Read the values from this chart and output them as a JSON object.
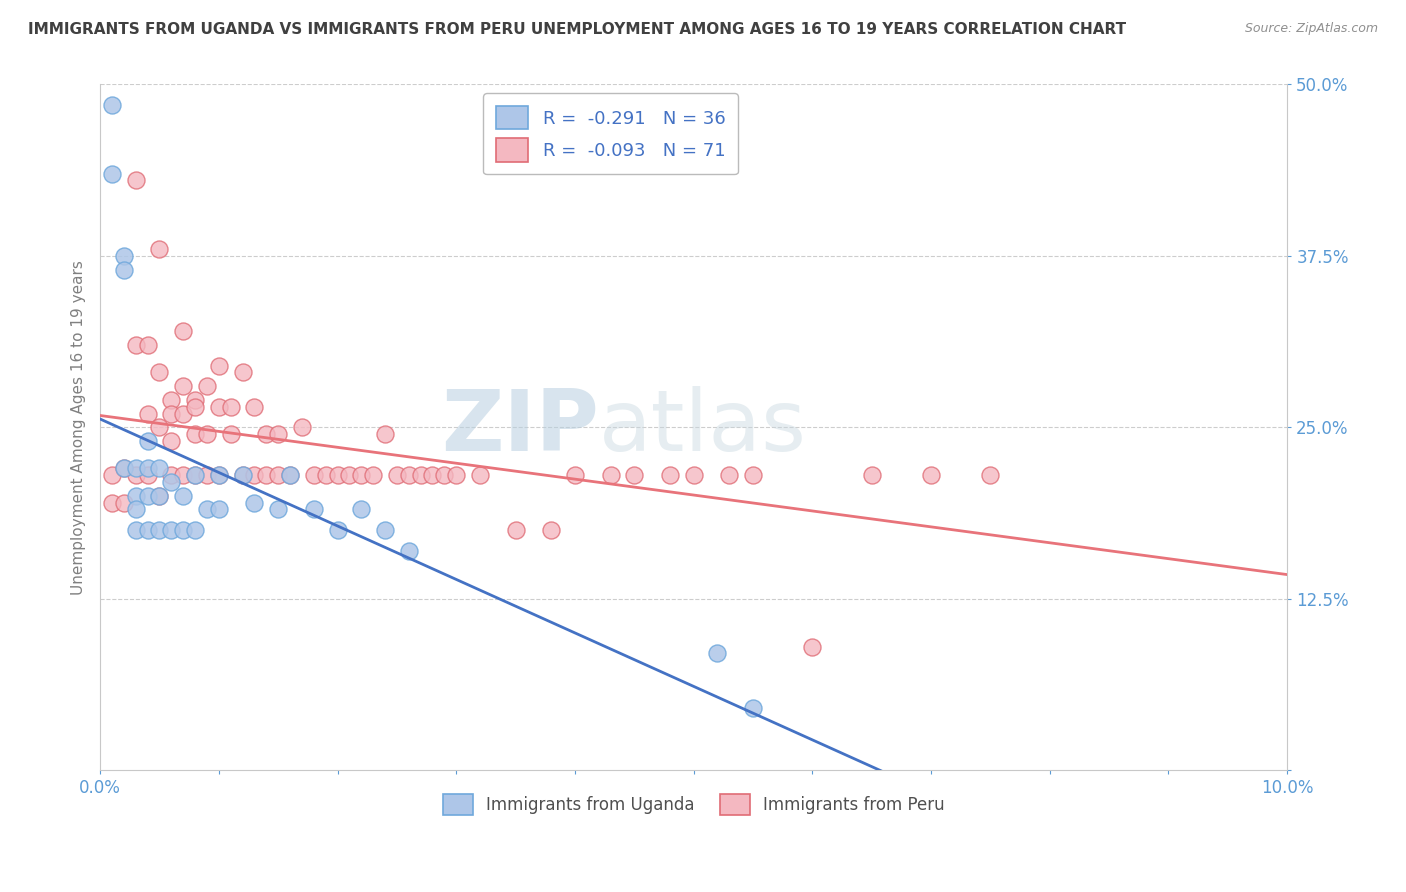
{
  "title": "IMMIGRANTS FROM UGANDA VS IMMIGRANTS FROM PERU UNEMPLOYMENT AMONG AGES 16 TO 19 YEARS CORRELATION CHART",
  "source": "Source: ZipAtlas.com",
  "ylabel": "Unemployment Among Ages 16 to 19 years",
  "xlim": [
    0.0,
    0.1
  ],
  "ylim": [
    0.0,
    0.5
  ],
  "xticks": [
    0.0,
    0.01,
    0.02,
    0.03,
    0.04,
    0.05,
    0.06,
    0.07,
    0.08,
    0.09,
    0.1
  ],
  "xticklabels_show": [
    "0.0%",
    "10.0%"
  ],
  "yticks": [
    0.0,
    0.125,
    0.25,
    0.375,
    0.5
  ],
  "yticklabels": [
    "",
    "12.5%",
    "25.0%",
    "37.5%",
    "50.0%"
  ],
  "legend1_label": "R =  -0.291   N = 36",
  "legend2_label": "R =  -0.093   N = 71",
  "legend1_color": "#aec6e8",
  "legend2_color": "#f4b8c1",
  "line1_color": "#4472c4",
  "line2_color": "#e8737a",
  "scatter1_color": "#aec6e8",
  "scatter2_color": "#f4b8c1",
  "scatter1_edge": "#6fa8dc",
  "scatter2_edge": "#e06c75",
  "watermark_zip": "ZIP",
  "watermark_atlas": "atlas",
  "background_color": "#ffffff",
  "grid_color": "#c8c8c8",
  "title_color": "#404040",
  "axis_color": "#808080",
  "tick_color": "#5b9bd5",
  "uganda_x": [
    0.001,
    0.001,
    0.002,
    0.002,
    0.002,
    0.003,
    0.003,
    0.003,
    0.003,
    0.004,
    0.004,
    0.004,
    0.004,
    0.005,
    0.005,
    0.005,
    0.006,
    0.006,
    0.007,
    0.007,
    0.008,
    0.008,
    0.009,
    0.01,
    0.01,
    0.012,
    0.013,
    0.015,
    0.016,
    0.018,
    0.02,
    0.022,
    0.024,
    0.026,
    0.052,
    0.055
  ],
  "uganda_y": [
    0.485,
    0.435,
    0.375,
    0.365,
    0.22,
    0.22,
    0.2,
    0.19,
    0.175,
    0.24,
    0.22,
    0.2,
    0.175,
    0.22,
    0.2,
    0.175,
    0.21,
    0.175,
    0.2,
    0.175,
    0.215,
    0.175,
    0.19,
    0.215,
    0.19,
    0.215,
    0.195,
    0.19,
    0.215,
    0.19,
    0.175,
    0.19,
    0.175,
    0.16,
    0.085,
    0.045
  ],
  "peru_x": [
    0.001,
    0.001,
    0.002,
    0.002,
    0.003,
    0.003,
    0.003,
    0.004,
    0.004,
    0.004,
    0.005,
    0.005,
    0.005,
    0.005,
    0.006,
    0.006,
    0.006,
    0.006,
    0.007,
    0.007,
    0.007,
    0.007,
    0.008,
    0.008,
    0.008,
    0.008,
    0.009,
    0.009,
    0.009,
    0.01,
    0.01,
    0.01,
    0.011,
    0.011,
    0.012,
    0.012,
    0.013,
    0.013,
    0.014,
    0.014,
    0.015,
    0.015,
    0.016,
    0.017,
    0.018,
    0.019,
    0.02,
    0.021,
    0.022,
    0.023,
    0.024,
    0.025,
    0.026,
    0.027,
    0.028,
    0.029,
    0.03,
    0.032,
    0.035,
    0.038,
    0.04,
    0.043,
    0.045,
    0.048,
    0.05,
    0.053,
    0.055,
    0.06,
    0.065,
    0.07,
    0.075
  ],
  "peru_y": [
    0.215,
    0.195,
    0.22,
    0.195,
    0.43,
    0.31,
    0.215,
    0.31,
    0.26,
    0.215,
    0.38,
    0.29,
    0.25,
    0.2,
    0.27,
    0.26,
    0.24,
    0.215,
    0.32,
    0.28,
    0.26,
    0.215,
    0.27,
    0.265,
    0.245,
    0.215,
    0.28,
    0.245,
    0.215,
    0.295,
    0.265,
    0.215,
    0.265,
    0.245,
    0.29,
    0.215,
    0.265,
    0.215,
    0.245,
    0.215,
    0.245,
    0.215,
    0.215,
    0.25,
    0.215,
    0.215,
    0.215,
    0.215,
    0.215,
    0.215,
    0.245,
    0.215,
    0.215,
    0.215,
    0.215,
    0.215,
    0.215,
    0.215,
    0.175,
    0.175,
    0.215,
    0.215,
    0.215,
    0.215,
    0.215,
    0.215,
    0.215,
    0.09,
    0.215,
    0.215,
    0.215
  ]
}
